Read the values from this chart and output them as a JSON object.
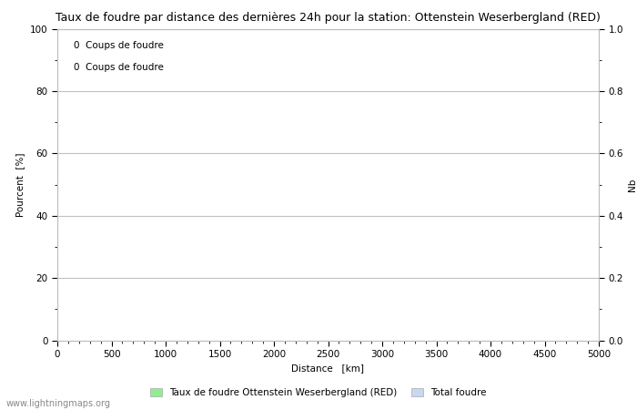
{
  "title": "Taux de foudre par distance des dernières 24h pour la station: Ottenstein Weserbergland (RED)",
  "xlabel": "Distance   [km]",
  "ylabel_left": "Pourcent  [%]",
  "ylabel_right": "Nb",
  "annotation_line1": "0  Coups de foudre",
  "annotation_line2": "0  Coups de foudre",
  "xlim": [
    0,
    5000
  ],
  "ylim_left": [
    0,
    100
  ],
  "ylim_right": [
    0,
    1.0
  ],
  "xticks": [
    0,
    500,
    1000,
    1500,
    2000,
    2500,
    3000,
    3500,
    4000,
    4500,
    5000
  ],
  "yticks_left": [
    0,
    20,
    40,
    60,
    80,
    100
  ],
  "yticks_right": [
    0.0,
    0.2,
    0.4,
    0.6,
    0.8,
    1.0
  ],
  "yticks_minor_left": [
    10,
    30,
    50,
    70,
    90
  ],
  "yticks_minor_right": [
    0.1,
    0.3,
    0.5,
    0.7,
    0.9
  ],
  "legend_label1": "Taux de foudre Ottenstein Weserbergland (RED)",
  "legend_label2": "Total foudre",
  "legend_color1": "#90EE90",
  "legend_color2": "#C8D8F0",
  "grid_color": "#C0C0C0",
  "background_color": "#FFFFFF",
  "title_fontsize": 9,
  "axis_fontsize": 7.5,
  "tick_fontsize": 7.5,
  "annotation_fontsize": 7.5,
  "watermark": "www.lightningmaps.org",
  "watermark_fontsize": 7
}
